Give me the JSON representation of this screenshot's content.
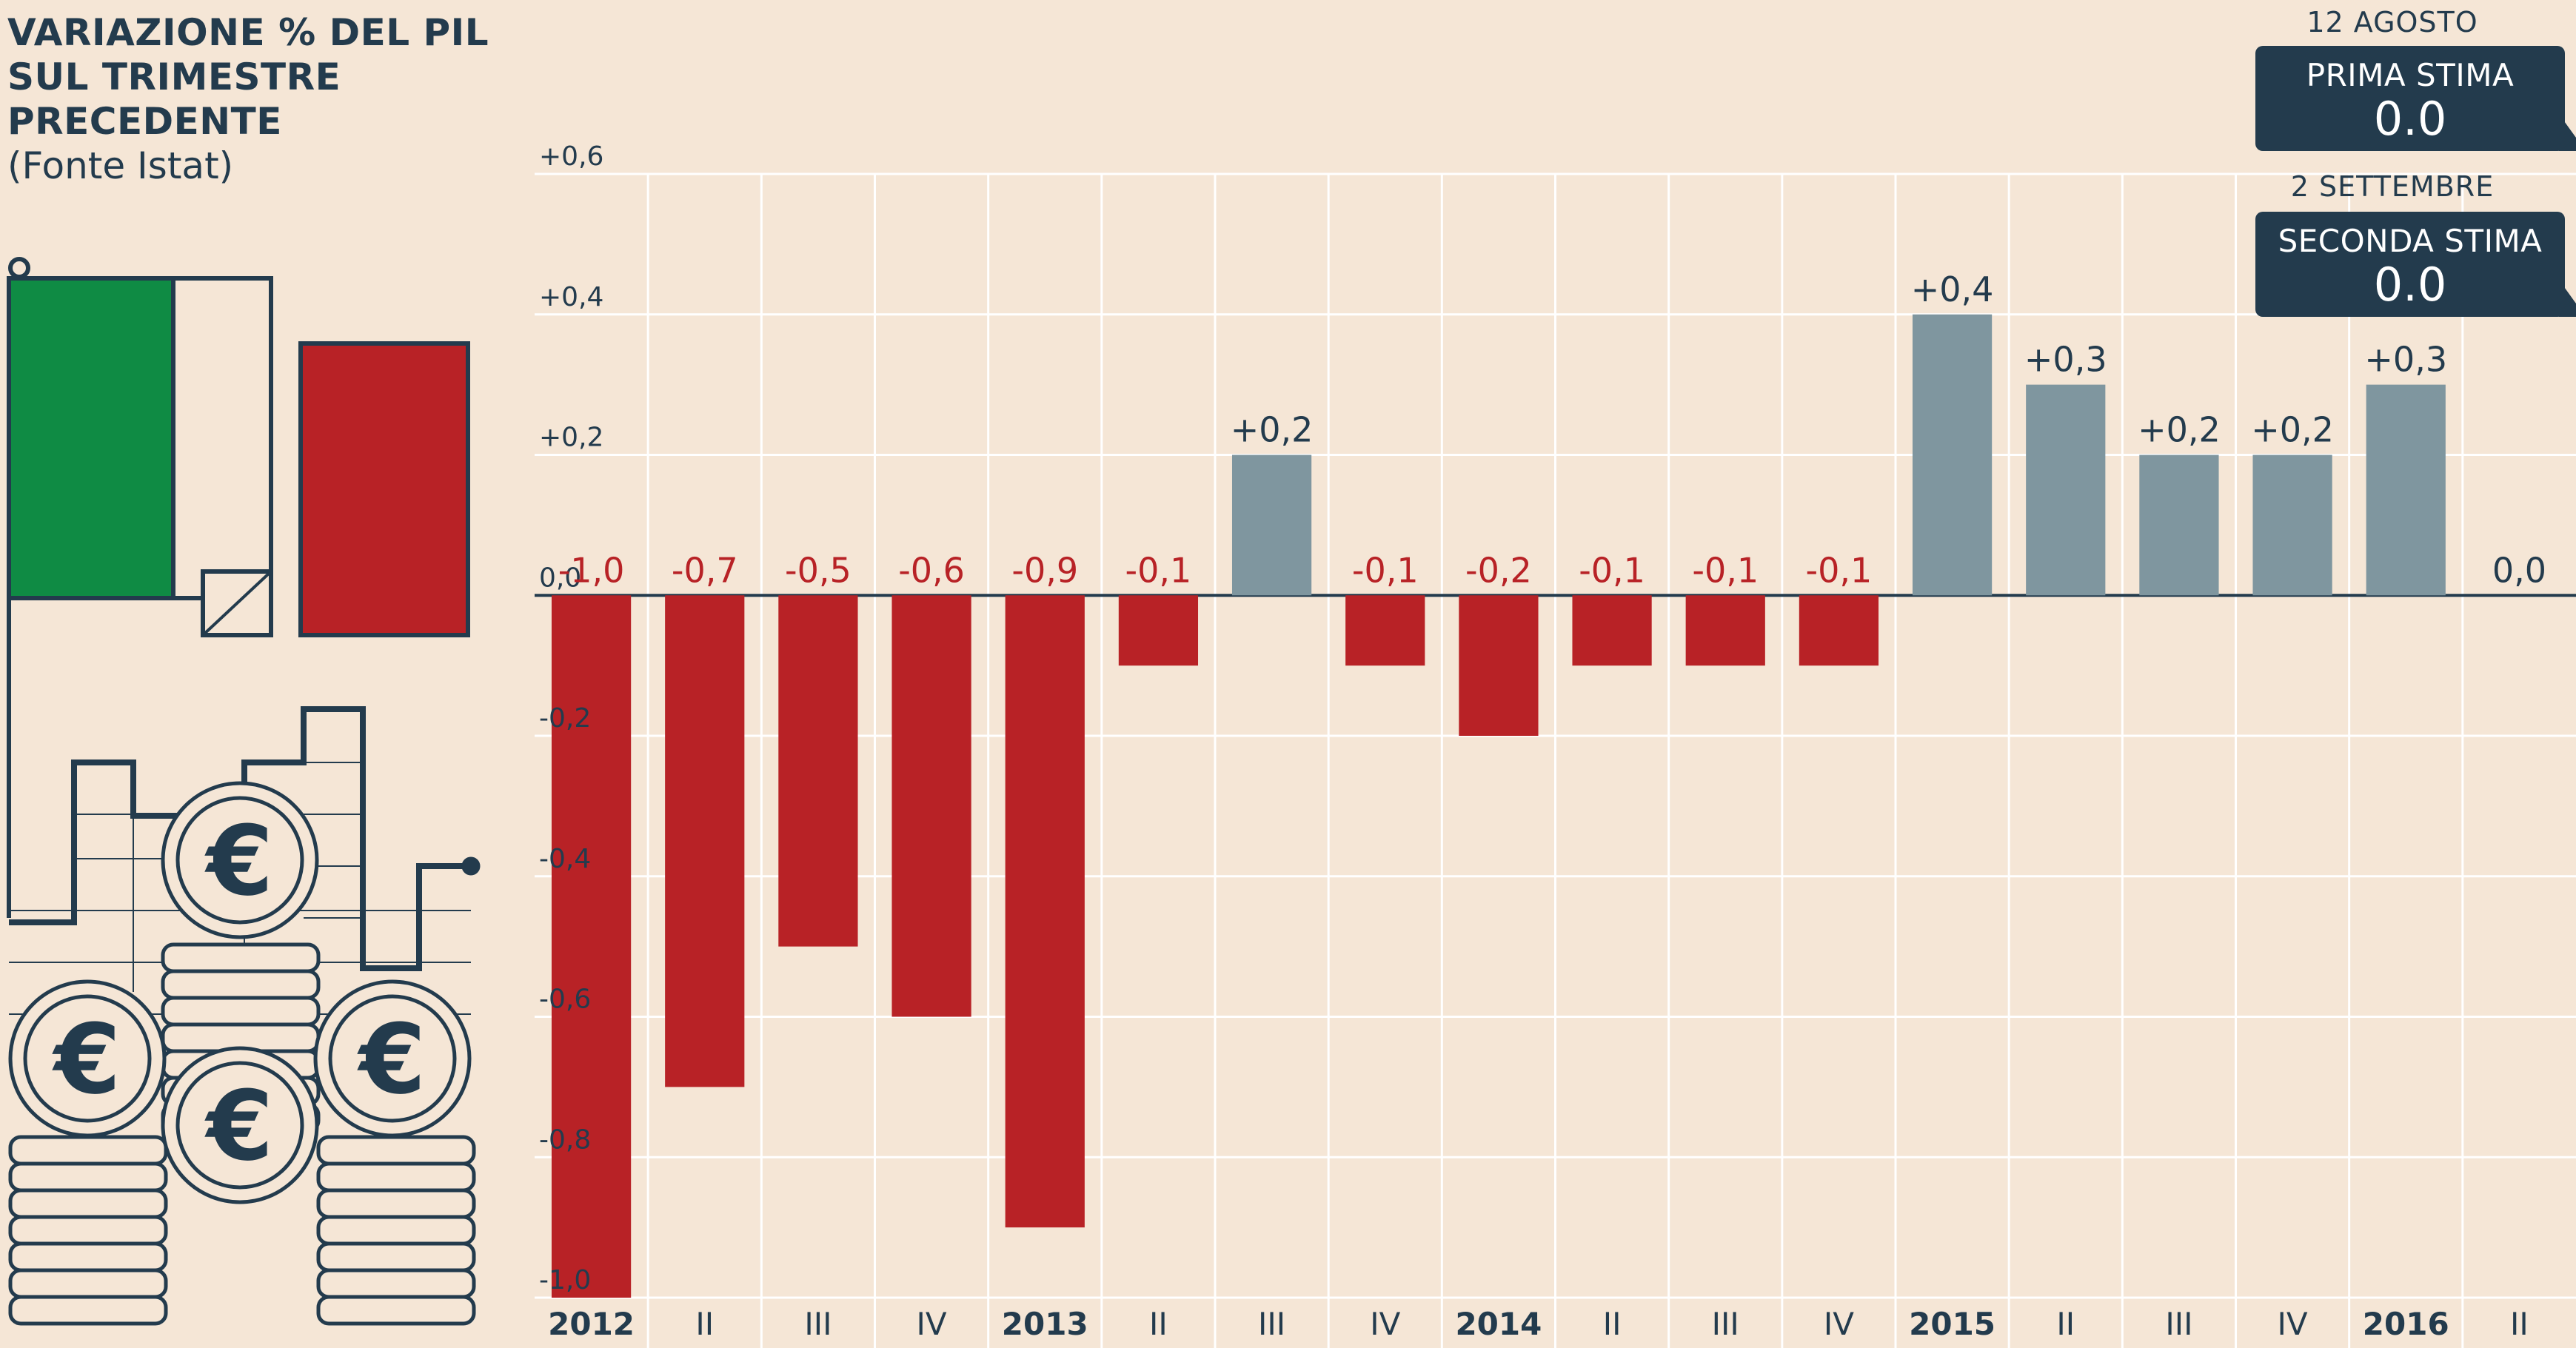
{
  "title": {
    "lines": [
      "VARIAZIONE % DEL PIL",
      "SUL TRIMESTRE",
      "PRECEDENTE"
    ],
    "source": "(Fonte Istat)"
  },
  "estimates": [
    {
      "date": "12 AGOSTO",
      "label": "PRIMA STIMA",
      "value": "0.0"
    },
    {
      "date": "2 SETTEMBRE",
      "label": "SECONDA STIMA",
      "value": "0.0"
    }
  ],
  "colors": {
    "negative": "#b82226",
    "positive": "#7f969f",
    "text": "#233b4d",
    "background": "#f5e6d6",
    "grid": "#ffffff"
  },
  "illustration": {
    "flag_icon": "italian-flag-icon",
    "coins_icon": "euro-coins-icon",
    "coin_symbol": "€"
  },
  "chart_data": {
    "type": "bar",
    "categories": [
      "2012",
      "II",
      "III",
      "IV",
      "2013",
      "II",
      "III",
      "IV",
      "2014",
      "II",
      "III",
      "IV",
      "2015",
      "II",
      "III",
      "IV",
      "2016",
      "II"
    ],
    "year_categories": [
      "2012",
      "2013",
      "2014",
      "2015",
      "2016"
    ],
    "values": [
      -1.0,
      -0.7,
      -0.5,
      -0.6,
      -0.9,
      -0.1,
      0.2,
      -0.1,
      -0.2,
      -0.1,
      -0.1,
      -0.1,
      0.4,
      0.3,
      0.2,
      0.2,
      0.3,
      0.0
    ],
    "value_labels": [
      "-1,0",
      "-0,7",
      "-0,5",
      "-0,6",
      "-0,9",
      "-0,1",
      "+0,2",
      "-0,1",
      "-0,2",
      "-0,1",
      "-0,1",
      "-0,1",
      "+0,4",
      "+0,3",
      "+0,2",
      "+0,2",
      "+0,3",
      "0,0"
    ],
    "y_ticks": [
      0.6,
      0.4,
      0.2,
      0.0,
      -0.2,
      -0.4,
      -0.6,
      -0.8,
      -1.0
    ],
    "y_tick_labels": [
      "+0,6",
      "+0,4",
      "+0,2",
      "0,0",
      "-0,2",
      "-0,4",
      "-0,6",
      "-0,8",
      "-1,0"
    ],
    "ylim": [
      -1.0,
      0.6
    ],
    "grid": true
  }
}
